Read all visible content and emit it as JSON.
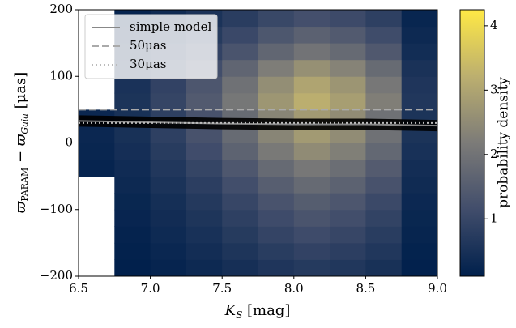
{
  "chart_data": {
    "type": "heatmap",
    "xlabel": [
      "K",
      "S",
      " [mag]"
    ],
    "ylabel": [
      "ϖ",
      "PARAM",
      " − ϖ",
      "Gaia",
      " [μas]"
    ],
    "colorbar_label": "probability density",
    "xlim": [
      6.5,
      9.0
    ],
    "ylim": [
      -200,
      200
    ],
    "xticks": [
      6.5,
      {
        "value": 7,
        "label": "7.0"
      },
      7.5,
      {
        "value": 8,
        "label": "8.0"
      },
      8.5,
      {
        "value": 9,
        "label": "9.0"
      }
    ],
    "yticks": [
      {
        "value": -200,
        "label": "−200"
      },
      {
        "value": -100,
        "label": "−100"
      },
      0,
      100,
      200
    ],
    "xbins": [
      6.5,
      6.75,
      7.0,
      7.25,
      7.5,
      7.75,
      8.0,
      8.25,
      8.5,
      8.75,
      9.0
    ],
    "ybins": [
      -200,
      -175,
      -150,
      -125,
      -100,
      -75,
      -50,
      -25,
      0,
      25,
      50,
      75,
      100,
      125,
      150,
      175,
      200
    ],
    "z": [
      [
        null,
        0.12,
        0.21,
        0.32,
        0.46,
        0.6,
        0.7,
        0.63,
        0.49,
        0.14
      ],
      [
        null,
        0.16,
        0.27,
        0.41,
        0.59,
        0.77,
        0.9,
        0.81,
        0.63,
        0.18
      ],
      [
        null,
        0.19,
        0.33,
        0.5,
        0.72,
        0.94,
        1.1,
        0.99,
        0.77,
        0.22
      ],
      [
        null,
        0.23,
        0.39,
        0.59,
        0.85,
        1.1,
        1.3,
        1.17,
        0.91,
        0.26
      ],
      [
        null,
        0.26,
        0.45,
        0.68,
        0.98,
        1.28,
        1.5,
        1.35,
        1.05,
        0.3
      ],
      [
        null,
        0.32,
        0.54,
        0.81,
        1.17,
        1.53,
        1.8,
        1.62,
        1.26,
        0.36
      ],
      [
        0.21,
        0.37,
        0.63,
        0.95,
        1.37,
        1.79,
        2.1,
        1.89,
        1.47,
        0.42
      ],
      [
        0.25,
        0.44,
        0.75,
        1.13,
        1.63,
        2.13,
        2.5,
        2.25,
        1.75,
        0.5
      ],
      [
        0.28,
        0.49,
        0.84,
        1.26,
        1.82,
        2.38,
        2.8,
        2.52,
        1.96,
        0.56
      ],
      [
        0.28,
        0.49,
        0.84,
        1.26,
        1.82,
        2.38,
        2.8,
        2.52,
        1.96,
        0.56
      ],
      [
        null,
        0.56,
        0.96,
        1.44,
        2.08,
        2.72,
        3.2,
        2.88,
        2.24,
        0.64
      ],
      [
        null,
        0.53,
        0.9,
        1.35,
        1.95,
        2.55,
        3.0,
        2.7,
        2.1,
        0.6
      ],
      [
        null,
        0.46,
        0.78,
        1.17,
        1.69,
        2.21,
        2.6,
        2.34,
        1.82,
        0.52
      ],
      [
        null,
        0.35,
        0.6,
        0.9,
        1.3,
        1.7,
        2.0,
        1.8,
        1.4,
        0.4
      ],
      [
        null,
        0.28,
        0.48,
        0.72,
        1.04,
        1.36,
        1.6,
        1.44,
        1.12,
        0.32
      ],
      [
        null,
        0.21,
        0.36,
        0.54,
        0.78,
        1.02,
        1.2,
        1.08,
        0.84,
        0.24
      ]
    ],
    "clim": [
      0.11,
      4.25
    ],
    "cticks": [
      1,
      2,
      3,
      4
    ],
    "colormap": [
      "#00204c",
      "#414d6b",
      "#7c7b78",
      "#bcaf6f",
      "#ffe945"
    ],
    "series": [
      {
        "name": "simple model",
        "color": "#888888",
        "style": "solid",
        "x": [
          6.5,
          7.0,
          7.5,
          8.0,
          8.5,
          9.0
        ],
        "values": [
          33,
          31,
          29,
          28,
          28,
          26
        ]
      },
      {
        "name": "50μas",
        "color": "#aaaaaa",
        "style": "dashed",
        "x": [
          6.5,
          9.0
        ],
        "values": [
          50,
          50
        ]
      },
      {
        "name": "30μas",
        "color": "#bbbbbb",
        "style": "dotted",
        "x": [
          6.5,
          9.0
        ],
        "values": [
          30,
          30
        ]
      }
    ],
    "refline": 0,
    "legend": "upper left"
  }
}
